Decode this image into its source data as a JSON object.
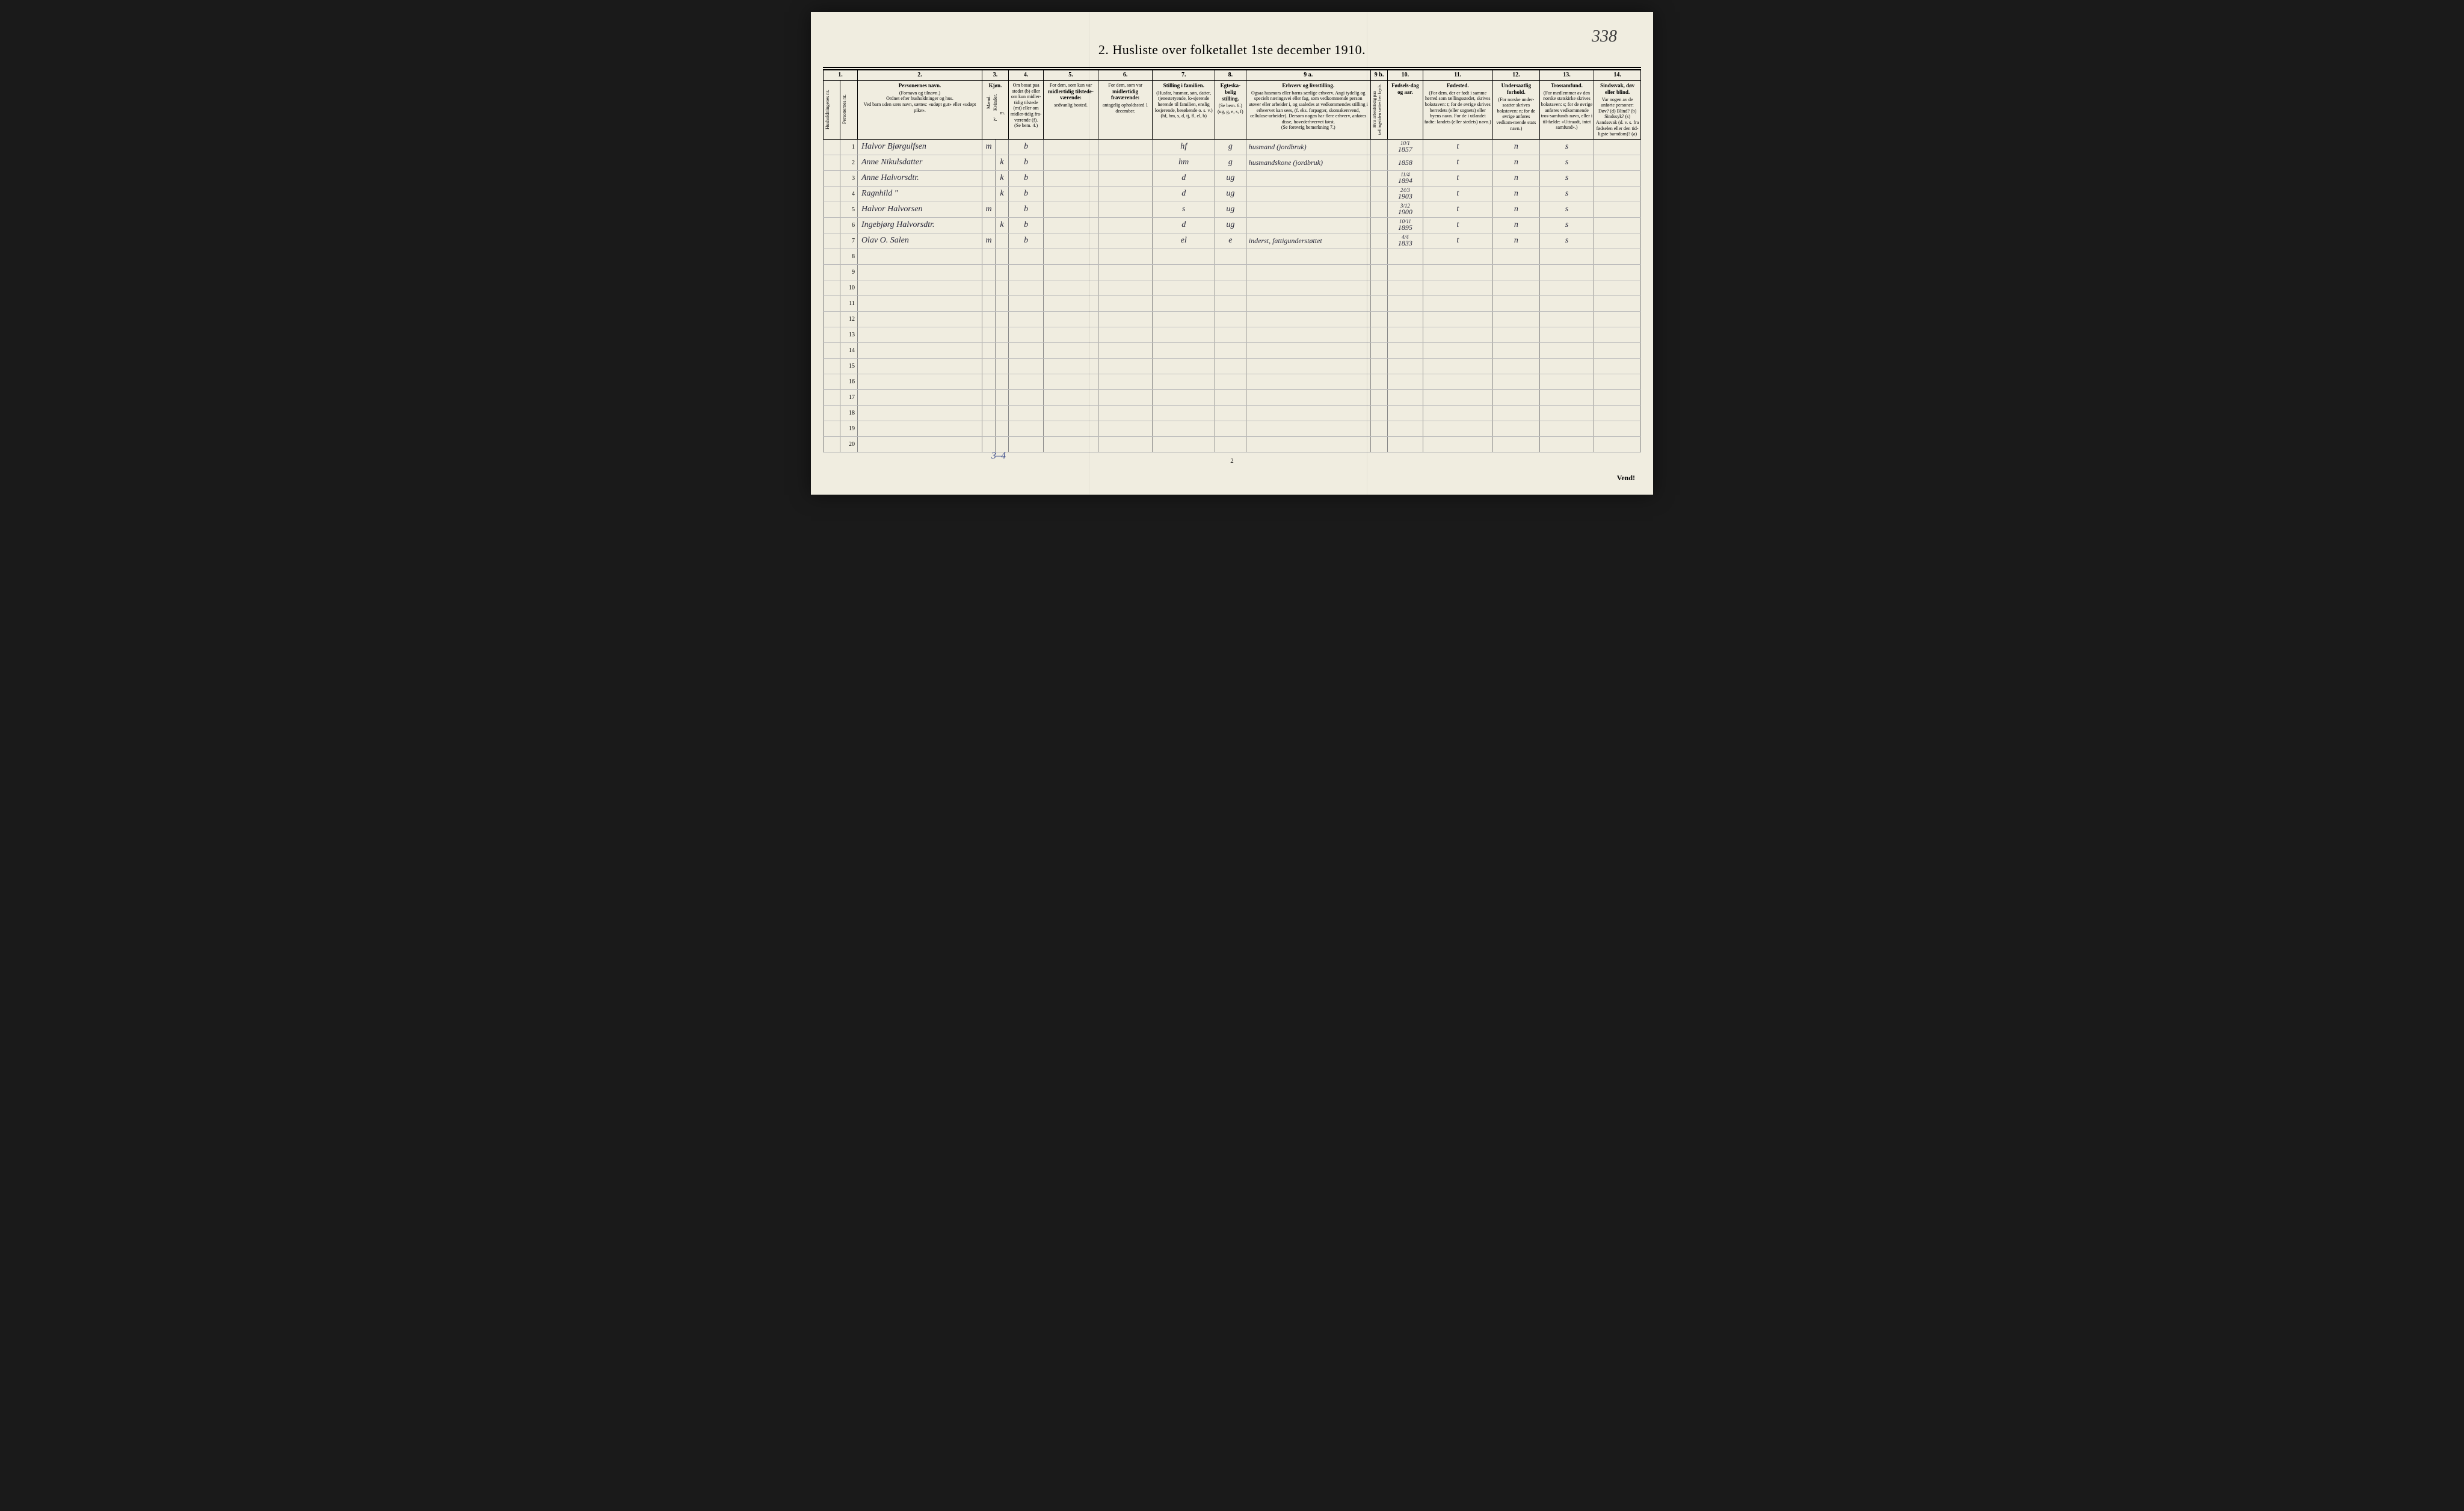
{
  "page_number_handwritten": "338",
  "title": "2.  Husliste over folketallet 1ste december 1910.",
  "footer_page": "2",
  "vend": "Vend!",
  "bottom_annotation": "3–4",
  "column_numbers": [
    "1.",
    "",
    "2.",
    "3.",
    "4.",
    "5.",
    "6.",
    "7.",
    "8.",
    "9 a.",
    "9 b.",
    "10.",
    "11.",
    "12.",
    "13.",
    "14."
  ],
  "headers": {
    "c1": "Husholdningenes nr.",
    "c1b": "Personernes nr.",
    "c2_bold": "Personernes navn.",
    "c2_l1": "(Fornavn og tilnavn.)",
    "c2_l2": "Ordnet efter husholdninger og hus.",
    "c2_l3": "Ved barn uden særs navn, sættes: «udøpt gut» eller «udøpt pike».",
    "c3_bold": "Kjøn.",
    "c3_m": "Mænd.",
    "c3_k": "Kvinder.",
    "c3_mk": "m.  k.",
    "c4_l1": "Om bosat paa stedet (b) eller om kun midler-tidig tilstede (mt) eller om midler-tidig fra-værende (f).",
    "c4_l2": "(Se bem. 4.)",
    "c5_l1": "For dem, som kun var",
    "c5_bold": "midlertidig tilstede-værende:",
    "c5_l2": "sedvanlig bosted.",
    "c6_l1": "For dem, som var",
    "c6_bold": "midlertidig fraværende:",
    "c6_l2": "antagelig opholdssted 1 december.",
    "c7_bold": "Stilling i familien.",
    "c7_l1": "(Husfar, husmor, søn, datter, tjenestetyende, lo-sjerende hørende til familien, enslig losjerende, besøkende o. s. v.)",
    "c7_l2": "(hf, hm, s, d, tj, fl, el, b)",
    "c8_bold": "Egteska-belig stilling.",
    "c8_l1": "(Se bem. 6.)",
    "c8_l2": "(ug, g, e, s, f)",
    "c9_bold": "Erhverv og livsstilling.",
    "c9_l1": "Ogsaa husmors eller barns særlige erhverv. Angi tydelig og specielt næringsvei eller fag, som vedkommende person utøver eller arbeider i, og saaledes at vedkommendes stilling i erhvervet kan sees, (f. eks. forpagter, skomakersvend, cellulose-arbeider). Dersom nogen har flere erhverv, anføres disse, hovederhvervet først.",
    "c9_l2": "(Se forøvrig bemerkning 7.)",
    "c9b": "Hvis arbeidsledig paa tællingstiden sættes her kryds.",
    "c10_bold": "Fødsels-dag og aar.",
    "c11_bold": "Fødested.",
    "c11_l1": "(For dem, der er født i samme herred som tællingsstedet, skrives bokstaven: t; for de øvrige skrives herredets (eller sognets) eller byens navn. For de i utlandet fødte: landets (eller stedets) navn.)",
    "c12_bold": "Undersaatlig forhold.",
    "c12_l1": "(For norske under-saatter skrives bokstaven: n; for de øvrige anføres vedkom-mende stats navn.)",
    "c13_bold": "Trossamfund.",
    "c13_l1": "(For medlemmer av den norske statskirke skrives bokstaven: s; for de øvrige anføres vedkommende tros-samfunds navn, eller i til-fælde: «Uttraadt, intet samfund».)",
    "c14_bold": "Sindssvak, døv eller blind.",
    "c14_l1": "Var nogen av de anførte personer:",
    "c14_l2": "Døv? (d)  Blind? (b)  Sindssyk? (s)  Aandssvak (d. v. s. fra fødselen eller den tid-ligste barndom)? (a)"
  },
  "rows": [
    {
      "n": "1",
      "name": "Halvor Bjørgulfsen",
      "sex": "m",
      "res": "b",
      "fam": "hf",
      "mar": "g",
      "occ": "husmand (jordbruk)",
      "date": "10/1",
      "year": "1857",
      "birth": "t",
      "nat": "n",
      "rel": "s"
    },
    {
      "n": "2",
      "name": "Anne Nikulsdatter",
      "sex": "k",
      "res": "b",
      "fam": "hm",
      "mar": "g",
      "occ": "husmandskone (jordbruk)",
      "date": "",
      "year": "1858",
      "birth": "t",
      "nat": "n",
      "rel": "s"
    },
    {
      "n": "3",
      "name": "Anne Halvorsdtr.",
      "sex": "k",
      "res": "b",
      "fam": "d",
      "mar": "ug",
      "occ": "",
      "date": "11/4",
      "year": "1894",
      "birth": "t",
      "nat": "n",
      "rel": "s"
    },
    {
      "n": "4",
      "name": "Ragnhild   \"",
      "sex": "k",
      "res": "b",
      "fam": "d",
      "mar": "ug",
      "occ": "",
      "date": "24/3",
      "year": "1903",
      "birth": "t",
      "nat": "n",
      "rel": "s"
    },
    {
      "n": "5",
      "name": "Halvor Halvorsen",
      "sex": "m",
      "res": "b",
      "fam": "s",
      "mar": "ug",
      "occ": "",
      "date": "3/12",
      "year": "1900",
      "birth": "t",
      "nat": "n",
      "rel": "s"
    },
    {
      "n": "6",
      "name": "Ingebjørg Halvorsdtr.",
      "sex": "k",
      "res": "b",
      "fam": "d",
      "mar": "ug",
      "occ": "",
      "date": "10/11",
      "year": "1895",
      "birth": "t",
      "nat": "n",
      "rel": "s"
    },
    {
      "n": "7",
      "name": "Olav O. Salen",
      "sex": "m",
      "res": "b",
      "fam": "el",
      "mar": "e",
      "occ": "inderst, fattigunderstøttet",
      "date": "4/4",
      "year": "1833",
      "birth": "t",
      "nat": "n",
      "rel": "s"
    }
  ],
  "empty_rows": [
    "8",
    "9",
    "10",
    "11",
    "12",
    "13",
    "14",
    "15",
    "16",
    "17",
    "18",
    "19",
    "20"
  ],
  "col_widths_pct": [
    2.2,
    2.2,
    16,
    1.7,
    1.7,
    4.5,
    7,
    7,
    8,
    4,
    16,
    2.2,
    4.5,
    9,
    6,
    7,
    6
  ],
  "colors": {
    "paper": "#f0ede0",
    "ink": "#2a2a3a",
    "rule": "#000000",
    "grid": "#888888"
  }
}
